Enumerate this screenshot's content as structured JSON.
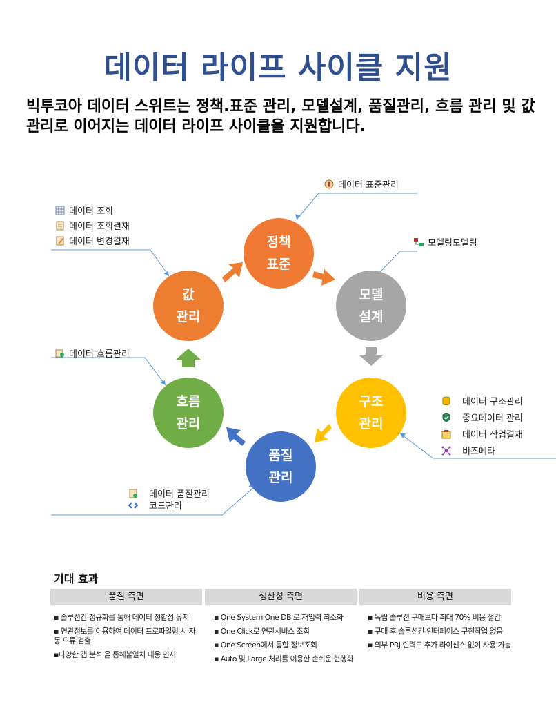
{
  "title": "데이터 라이프 사이클 지원",
  "intro": "빅투코아 데이터 스위트는 정책.표준 관리, 모델설계, 품질관리, 흐름 관리 및 값 관리로 이어지는 데이터 라이프 사이클을 지원합니다.",
  "cycle": {
    "policy": {
      "line1": "정책",
      "line2": "표준",
      "color": "#f07a33"
    },
    "model": {
      "line1": "모델",
      "line2": "설계",
      "color": "#a6a6a6"
    },
    "structure": {
      "line1": "구조",
      "line2": "관리",
      "color": "#ffc000"
    },
    "quality": {
      "line1": "품질",
      "line2": "관리",
      "color": "#4472c4"
    },
    "flow": {
      "line1": "흐름",
      "line2": "관리",
      "color": "#70ad47"
    },
    "value": {
      "line1": "값",
      "line2": "관리",
      "color": "#ed7d31"
    }
  },
  "tools": {
    "standard": "데이터 표준관리",
    "modeling": "모델링모델링",
    "value_items": [
      "데이터 조회",
      "데이터 조회결재",
      "데이터 변경결재"
    ],
    "flow_item": "데이터 흐름관리",
    "structure_items": [
      "데이터 구조관리",
      "중요데이터 관리",
      "데이터 작업결재",
      "비즈메타"
    ],
    "quality_items": [
      "데이터 품질관리",
      "코드관리"
    ]
  },
  "benefits": {
    "title": "기대 효과",
    "columns": [
      {
        "heading": "품질 측면",
        "items": [
          "솔루션간 정규화를 통해 데이터 정합성 유지",
          "연관정보를 이용하여 데이터 프로파일링 시 자동 오류 검출",
          "다양한 갭 분석 을 통해불일치 내용 인지"
        ]
      },
      {
        "heading": "생산성 측면",
        "items": [
          "One System One DB 로 재입력 최소화",
          "One Click로 연관서비스 조회",
          "One Screen에서 통합 정보조회",
          "Auto 및 Large 처리를 이용한 손쉬운 현행화"
        ]
      },
      {
        "heading": "비용 측면",
        "items": [
          "독립 솔루션 구매보다 최대 70% 비용 절감",
          "구매 후 솔루션간 인터페이스 구현작업 없음",
          "외부 PRJ 인력도 추가 라이선스 없이 사용 가능"
        ]
      }
    ]
  }
}
